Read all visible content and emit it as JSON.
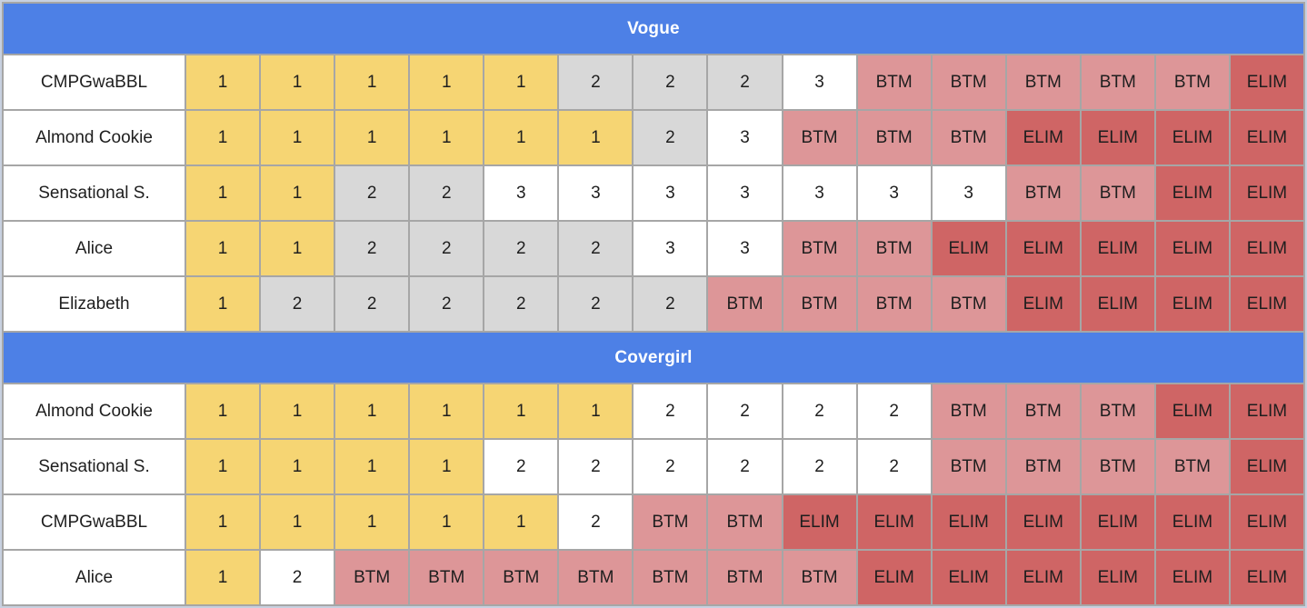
{
  "palette": {
    "header_bg": "#4D80E6",
    "header_text": "#FFFFFF",
    "gridline": "#A6A6A6",
    "page_bg": "#C7D0E0",
    "cell_text": "#1E1E1E"
  },
  "chart_data": {
    "type": "table",
    "color_key": {
      "gold": "#F6D573",
      "gray": "#D8D8D8",
      "white": "#FFFFFF",
      "pink": "#DD9698",
      "red": "#CF6565"
    },
    "sections": [
      {
        "title": "Vogue",
        "rows": [
          {
            "name": "CMPGwaBBL",
            "values": [
              "1",
              "1",
              "1",
              "1",
              "1",
              "2",
              "2",
              "2",
              "3",
              "BTM",
              "BTM",
              "BTM",
              "BTM",
              "BTM",
              "ELIM"
            ],
            "colors": [
              "gold",
              "gold",
              "gold",
              "gold",
              "gold",
              "gray",
              "gray",
              "gray",
              "white",
              "pink",
              "pink",
              "pink",
              "pink",
              "pink",
              "red"
            ]
          },
          {
            "name": "Almond Cookie",
            "values": [
              "1",
              "1",
              "1",
              "1",
              "1",
              "1",
              "2",
              "3",
              "BTM",
              "BTM",
              "BTM",
              "ELIM",
              "ELIM",
              "ELIM",
              "ELIM"
            ],
            "colors": [
              "gold",
              "gold",
              "gold",
              "gold",
              "gold",
              "gold",
              "gray",
              "white",
              "pink",
              "pink",
              "pink",
              "red",
              "red",
              "red",
              "red"
            ]
          },
          {
            "name": "Sensational S.",
            "values": [
              "1",
              "1",
              "2",
              "2",
              "3",
              "3",
              "3",
              "3",
              "3",
              "3",
              "3",
              "BTM",
              "BTM",
              "ELIM",
              "ELIM"
            ],
            "colors": [
              "gold",
              "gold",
              "gray",
              "gray",
              "white",
              "white",
              "white",
              "white",
              "white",
              "white",
              "white",
              "pink",
              "pink",
              "red",
              "red"
            ]
          },
          {
            "name": "Alice",
            "values": [
              "1",
              "1",
              "2",
              "2",
              "2",
              "2",
              "3",
              "3",
              "BTM",
              "BTM",
              "ELIM",
              "ELIM",
              "ELIM",
              "ELIM",
              "ELIM"
            ],
            "colors": [
              "gold",
              "gold",
              "gray",
              "gray",
              "gray",
              "gray",
              "white",
              "white",
              "pink",
              "pink",
              "red",
              "red",
              "red",
              "red",
              "red"
            ]
          },
          {
            "name": "Elizabeth",
            "values": [
              "1",
              "2",
              "2",
              "2",
              "2",
              "2",
              "2",
              "BTM",
              "BTM",
              "BTM",
              "BTM",
              "ELIM",
              "ELIM",
              "ELIM",
              "ELIM"
            ],
            "colors": [
              "gold",
              "gray",
              "gray",
              "gray",
              "gray",
              "gray",
              "gray",
              "pink",
              "pink",
              "pink",
              "pink",
              "red",
              "red",
              "red",
              "red"
            ]
          }
        ]
      },
      {
        "title": "Covergirl",
        "rows": [
          {
            "name": "Almond Cookie",
            "values": [
              "1",
              "1",
              "1",
              "1",
              "1",
              "1",
              "2",
              "2",
              "2",
              "2",
              "BTM",
              "BTM",
              "BTM",
              "ELIM",
              "ELIM"
            ],
            "colors": [
              "gold",
              "gold",
              "gold",
              "gold",
              "gold",
              "gold",
              "white",
              "white",
              "white",
              "white",
              "pink",
              "pink",
              "pink",
              "red",
              "red"
            ]
          },
          {
            "name": "Sensational S.",
            "values": [
              "1",
              "1",
              "1",
              "1",
              "2",
              "2",
              "2",
              "2",
              "2",
              "2",
              "BTM",
              "BTM",
              "BTM",
              "BTM",
              "ELIM"
            ],
            "colors": [
              "gold",
              "gold",
              "gold",
              "gold",
              "white",
              "white",
              "white",
              "white",
              "white",
              "white",
              "pink",
              "pink",
              "pink",
              "pink",
              "red"
            ]
          },
          {
            "name": "CMPGwaBBL",
            "values": [
              "1",
              "1",
              "1",
              "1",
              "1",
              "2",
              "BTM",
              "BTM",
              "ELIM",
              "ELIM",
              "ELIM",
              "ELIM",
              "ELIM",
              "ELIM",
              "ELIM"
            ],
            "colors": [
              "gold",
              "gold",
              "gold",
              "gold",
              "gold",
              "white",
              "pink",
              "pink",
              "red",
              "red",
              "red",
              "red",
              "red",
              "red",
              "red"
            ]
          },
          {
            "name": "Alice",
            "values": [
              "1",
              "2",
              "BTM",
              "BTM",
              "BTM",
              "BTM",
              "BTM",
              "BTM",
              "BTM",
              "ELIM",
              "ELIM",
              "ELIM",
              "ELIM",
              "ELIM",
              "ELIM"
            ],
            "colors": [
              "gold",
              "white",
              "pink",
              "pink",
              "pink",
              "pink",
              "pink",
              "pink",
              "pink",
              "red",
              "red",
              "red",
              "red",
              "red",
              "red"
            ]
          }
        ]
      }
    ]
  }
}
